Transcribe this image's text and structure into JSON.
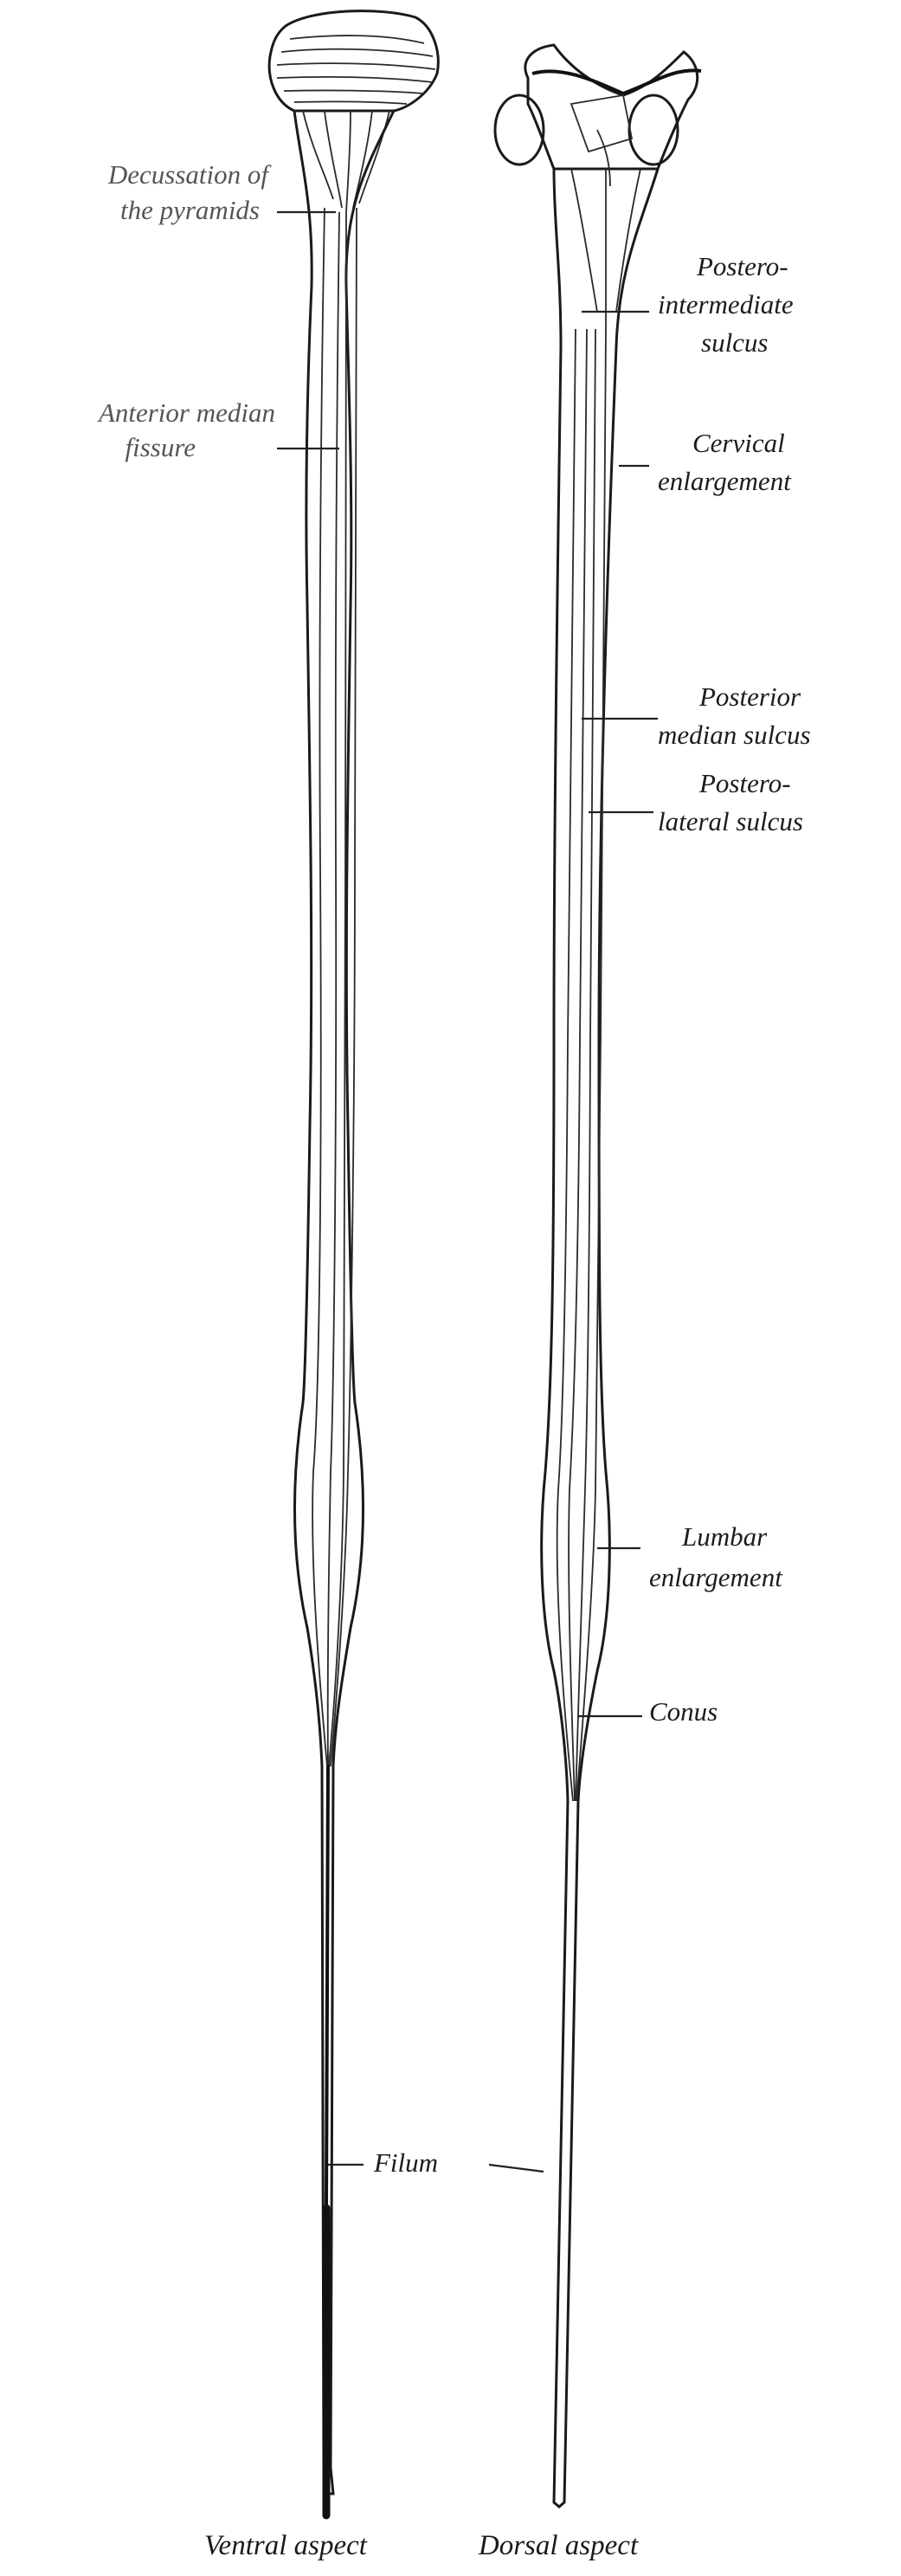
{
  "labels": {
    "decussation_line1": "Decussation of",
    "decussation_line2": "the pyramids",
    "anterior_line1": "Anterior median",
    "anterior_line2": "fissure",
    "postero_intermediate_line1": "Postero-",
    "postero_intermediate_line2": "intermediate",
    "postero_intermediate_line3": "sulcus",
    "cervical_line1": "Cervical",
    "cervical_line2": "enlargement",
    "posterior_median_line1": "Posterior",
    "posterior_median_line2": "median sulcus",
    "postero_lateral_line1": "Postero-",
    "postero_lateral_line2": "lateral sulcus",
    "lumbar_line1": "Lumbar",
    "lumbar_line2": "enlargement",
    "conus": "Conus",
    "filum": "Filum"
  },
  "captions": {
    "ventral": "Ventral aspect",
    "dorsal": "Dorsal aspect"
  },
  "colors": {
    "ink": "#1a1a1a",
    "faded_label": "#555555",
    "background": "#ffffff"
  }
}
